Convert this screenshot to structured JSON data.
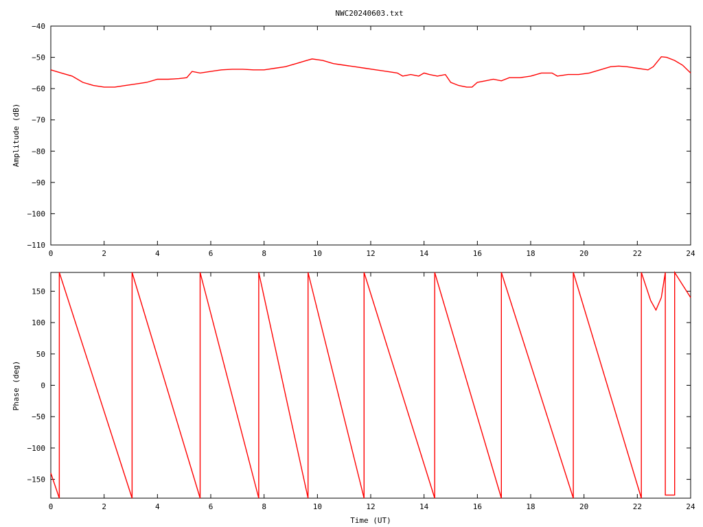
{
  "chart_data": [
    {
      "type": "line",
      "title": "NWC20240603.txt",
      "xlabel": "",
      "ylabel": "Amplitude (dB)",
      "xlim": [
        0,
        24
      ],
      "ylim": [
        -110,
        -40
      ],
      "xticks": [
        "0",
        "2",
        "4",
        "6",
        "8",
        "10",
        "12",
        "14",
        "16",
        "18",
        "20",
        "22",
        "24"
      ],
      "yticks": [
        "−40",
        "−50",
        "−60",
        "−70",
        "−80",
        "−90",
        "−100",
        "−110"
      ],
      "grid": false,
      "series": [
        {
          "color": "#ff0000",
          "x": [
            0,
            0.4,
            0.8,
            1.2,
            1.6,
            2.0,
            2.4,
            2.8,
            3.2,
            3.6,
            4.0,
            4.4,
            4.8,
            5.1,
            5.3,
            5.6,
            6.0,
            6.4,
            6.8,
            7.2,
            7.6,
            8.0,
            8.4,
            8.8,
            9.2,
            9.6,
            9.8,
            10.2,
            10.6,
            11.0,
            11.4,
            11.8,
            12.2,
            12.6,
            13.0,
            13.2,
            13.5,
            13.8,
            14.0,
            14.2,
            14.5,
            14.8,
            15.0,
            15.3,
            15.6,
            15.8,
            16.0,
            16.3,
            16.6,
            16.9,
            17.2,
            17.6,
            18.0,
            18.4,
            18.8,
            19.0,
            19.4,
            19.8,
            20.2,
            20.6,
            21.0,
            21.3,
            21.6,
            22.0,
            22.4,
            22.6,
            22.9,
            23.1,
            23.4,
            23.7,
            24.0
          ],
          "y": [
            -54,
            -55,
            -56,
            -58,
            -59,
            -59.5,
            -59.5,
            -59,
            -58.5,
            -58,
            -57,
            -57,
            -56.8,
            -56.5,
            -54.5,
            -55,
            -54.5,
            -54,
            -53.8,
            -53.8,
            -54,
            -54,
            -53.5,
            -53,
            -52,
            -51,
            -50.5,
            -51,
            -52,
            -52.5,
            -53,
            -53.5,
            -54,
            -54.5,
            -55,
            -56,
            -55.5,
            -56,
            -55,
            -55.5,
            -56,
            -55.5,
            -58,
            -59,
            -59.5,
            -59.5,
            -58,
            -57.5,
            -57,
            -57.5,
            -56.5,
            -56.5,
            -56,
            -55,
            -55,
            -56,
            -55.5,
            -55.5,
            -55,
            -54,
            -53,
            -52.8,
            -53,
            -53.5,
            -54,
            -53,
            -49.8,
            -50,
            -51,
            -52.5,
            -55
          ]
        }
      ]
    },
    {
      "type": "line",
      "title": "",
      "xlabel": "Time (UT)",
      "ylabel": "Phase (deg)",
      "xlim": [
        0,
        24
      ],
      "ylim": [
        -180,
        180
      ],
      "xticks": [
        "0",
        "2",
        "4",
        "6",
        "8",
        "10",
        "12",
        "14",
        "16",
        "18",
        "20",
        "22",
        "24"
      ],
      "yticks": [
        "150",
        "100",
        "50",
        "0",
        "−50",
        "−100",
        "−150"
      ],
      "grid": false,
      "series": [
        {
          "color": "#ff0000",
          "x": [
            0,
            0.32,
            0.32,
            3.05,
            3.05,
            5.6,
            5.6,
            7.8,
            7.8,
            9.65,
            9.65,
            11.75,
            11.75,
            14.4,
            14.4,
            16.9,
            16.9,
            19.6,
            19.6,
            22.15,
            22.15,
            22.5,
            22.7,
            22.9,
            23.05,
            23.05,
            23.4,
            23.4,
            24.0
          ],
          "y": [
            -140,
            -180,
            180,
            -180,
            180,
            -180,
            180,
            -180,
            180,
            -180,
            180,
            -180,
            180,
            -180,
            180,
            -180,
            180,
            -180,
            180,
            -180,
            180,
            135,
            120,
            140,
            180,
            -175,
            -175,
            180,
            140
          ]
        }
      ]
    }
  ]
}
